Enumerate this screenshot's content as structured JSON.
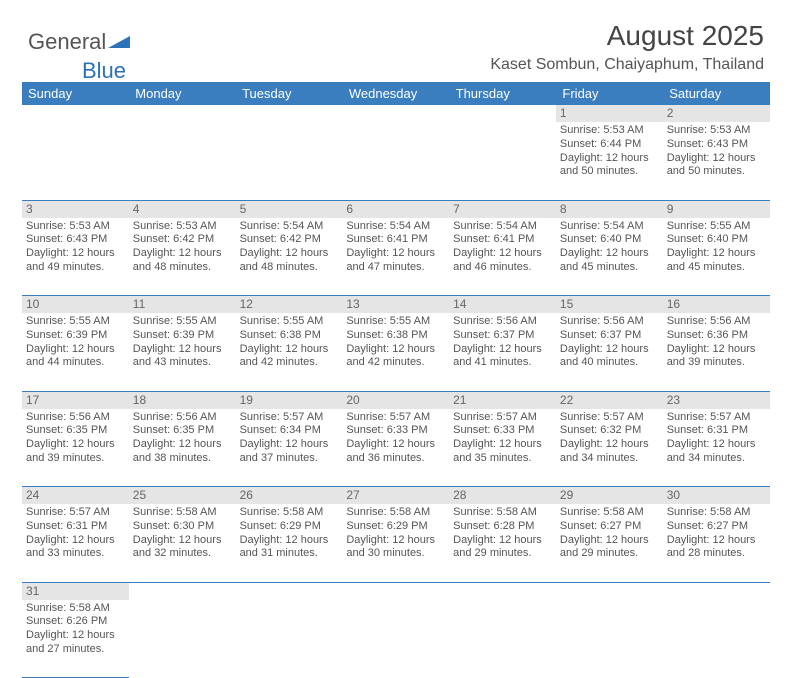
{
  "logo": {
    "text1": "General",
    "text2": "Blue"
  },
  "header": {
    "title": "August 2025",
    "subtitle": "Kaset Sombun, Chaiyaphum, Thailand"
  },
  "colors": {
    "header_bg": "#3a7ebf",
    "header_text": "#ffffff",
    "daynum_bg": "#e5e5e5",
    "cell_border": "#3a7ebf",
    "body_text": "#555555",
    "page_bg": "#ffffff"
  },
  "dayNames": [
    "Sunday",
    "Monday",
    "Tuesday",
    "Wednesday",
    "Thursday",
    "Friday",
    "Saturday"
  ],
  "startWeekday": 5,
  "daysInMonth": 31,
  "days": {
    "1": {
      "sunrise": "5:53 AM",
      "sunset": "6:44 PM",
      "daylight": "12 hours and 50 minutes."
    },
    "2": {
      "sunrise": "5:53 AM",
      "sunset": "6:43 PM",
      "daylight": "12 hours and 50 minutes."
    },
    "3": {
      "sunrise": "5:53 AM",
      "sunset": "6:43 PM",
      "daylight": "12 hours and 49 minutes."
    },
    "4": {
      "sunrise": "5:53 AM",
      "sunset": "6:42 PM",
      "daylight": "12 hours and 48 minutes."
    },
    "5": {
      "sunrise": "5:54 AM",
      "sunset": "6:42 PM",
      "daylight": "12 hours and 48 minutes."
    },
    "6": {
      "sunrise": "5:54 AM",
      "sunset": "6:41 PM",
      "daylight": "12 hours and 47 minutes."
    },
    "7": {
      "sunrise": "5:54 AM",
      "sunset": "6:41 PM",
      "daylight": "12 hours and 46 minutes."
    },
    "8": {
      "sunrise": "5:54 AM",
      "sunset": "6:40 PM",
      "daylight": "12 hours and 45 minutes."
    },
    "9": {
      "sunrise": "5:55 AM",
      "sunset": "6:40 PM",
      "daylight": "12 hours and 45 minutes."
    },
    "10": {
      "sunrise": "5:55 AM",
      "sunset": "6:39 PM",
      "daylight": "12 hours and 44 minutes."
    },
    "11": {
      "sunrise": "5:55 AM",
      "sunset": "6:39 PM",
      "daylight": "12 hours and 43 minutes."
    },
    "12": {
      "sunrise": "5:55 AM",
      "sunset": "6:38 PM",
      "daylight": "12 hours and 42 minutes."
    },
    "13": {
      "sunrise": "5:55 AM",
      "sunset": "6:38 PM",
      "daylight": "12 hours and 42 minutes."
    },
    "14": {
      "sunrise": "5:56 AM",
      "sunset": "6:37 PM",
      "daylight": "12 hours and 41 minutes."
    },
    "15": {
      "sunrise": "5:56 AM",
      "sunset": "6:37 PM",
      "daylight": "12 hours and 40 minutes."
    },
    "16": {
      "sunrise": "5:56 AM",
      "sunset": "6:36 PM",
      "daylight": "12 hours and 39 minutes."
    },
    "17": {
      "sunrise": "5:56 AM",
      "sunset": "6:35 PM",
      "daylight": "12 hours and 39 minutes."
    },
    "18": {
      "sunrise": "5:56 AM",
      "sunset": "6:35 PM",
      "daylight": "12 hours and 38 minutes."
    },
    "19": {
      "sunrise": "5:57 AM",
      "sunset": "6:34 PM",
      "daylight": "12 hours and 37 minutes."
    },
    "20": {
      "sunrise": "5:57 AM",
      "sunset": "6:33 PM",
      "daylight": "12 hours and 36 minutes."
    },
    "21": {
      "sunrise": "5:57 AM",
      "sunset": "6:33 PM",
      "daylight": "12 hours and 35 minutes."
    },
    "22": {
      "sunrise": "5:57 AM",
      "sunset": "6:32 PM",
      "daylight": "12 hours and 34 minutes."
    },
    "23": {
      "sunrise": "5:57 AM",
      "sunset": "6:31 PM",
      "daylight": "12 hours and 34 minutes."
    },
    "24": {
      "sunrise": "5:57 AM",
      "sunset": "6:31 PM",
      "daylight": "12 hours and 33 minutes."
    },
    "25": {
      "sunrise": "5:58 AM",
      "sunset": "6:30 PM",
      "daylight": "12 hours and 32 minutes."
    },
    "26": {
      "sunrise": "5:58 AM",
      "sunset": "6:29 PM",
      "daylight": "12 hours and 31 minutes."
    },
    "27": {
      "sunrise": "5:58 AM",
      "sunset": "6:29 PM",
      "daylight": "12 hours and 30 minutes."
    },
    "28": {
      "sunrise": "5:58 AM",
      "sunset": "6:28 PM",
      "daylight": "12 hours and 29 minutes."
    },
    "29": {
      "sunrise": "5:58 AM",
      "sunset": "6:27 PM",
      "daylight": "12 hours and 29 minutes."
    },
    "30": {
      "sunrise": "5:58 AM",
      "sunset": "6:27 PM",
      "daylight": "12 hours and 28 minutes."
    },
    "31": {
      "sunrise": "5:58 AM",
      "sunset": "6:26 PM",
      "daylight": "12 hours and 27 minutes."
    }
  },
  "labels": {
    "sunrise": "Sunrise:",
    "sunset": "Sunset:",
    "daylight": "Daylight:"
  }
}
